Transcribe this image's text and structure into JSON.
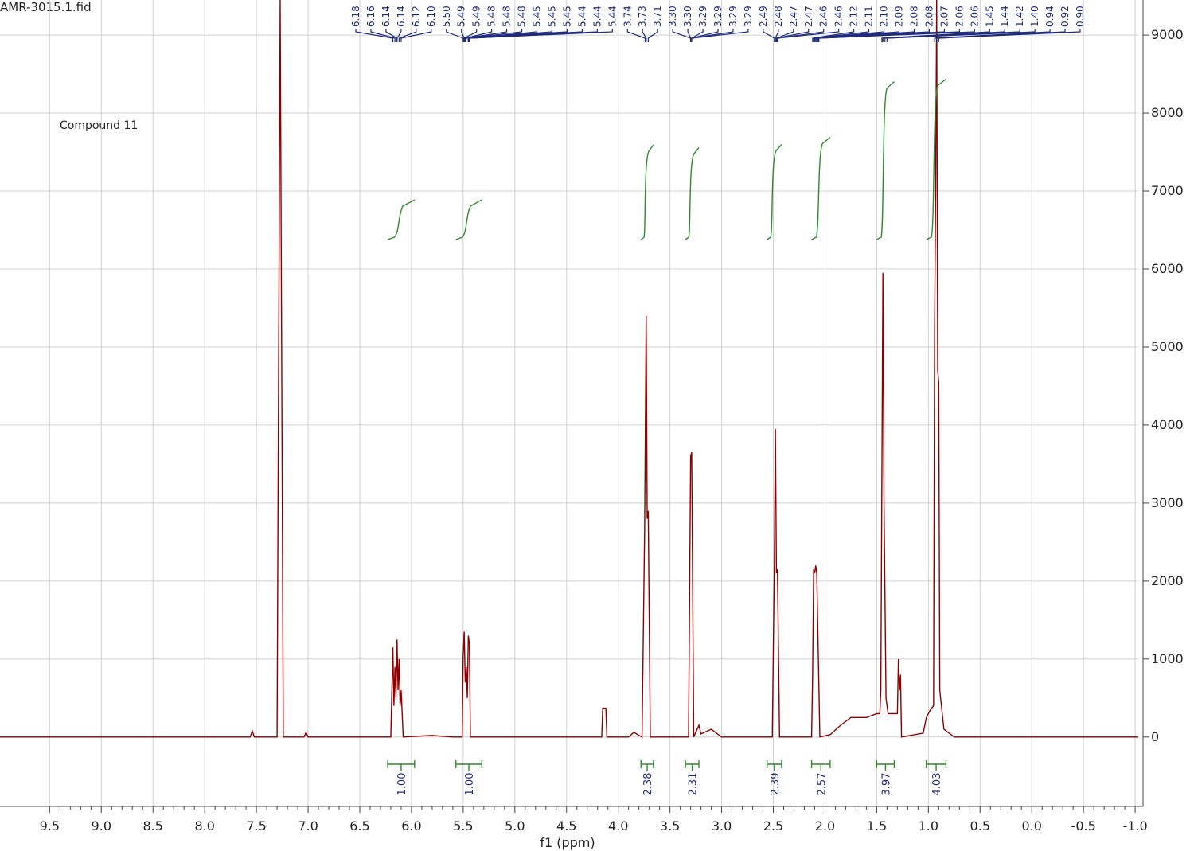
{
  "chart_data": {
    "type": "nmr",
    "title": "AMR-3015.1.fid",
    "annotation": "Compound 11",
    "xlabel": "f1 (ppm)",
    "color": "#8b0000",
    "label_color": "#1f2a7a",
    "integral_color": "#2e8b2e",
    "grid": true,
    "xlim": [
      9.98,
      -1.03
    ],
    "ylim": [
      -890,
      9450
    ],
    "xticks": [
      9.5,
      {
        "value": 9.0,
        "label": "9.0"
      },
      8.5,
      {
        "value": 8.0,
        "label": "8.0"
      },
      7.5,
      {
        "value": 7.0,
        "label": "7.0"
      },
      6.5,
      {
        "value": 6.0,
        "label": "6.0"
      },
      5.5,
      {
        "value": 5.0,
        "label": "5.0"
      },
      4.5,
      {
        "value": 4.0,
        "label": "4.0"
      },
      3.5,
      {
        "value": 3.0,
        "label": "3.0"
      },
      2.5,
      {
        "value": 2.0,
        "label": "2.0"
      },
      1.5,
      {
        "value": 1.0,
        "label": "1.0"
      },
      0.5,
      {
        "value": 0,
        "label": "0.0"
      },
      -0.5,
      {
        "value": -1.0,
        "label": "-1.0"
      }
    ],
    "yticks": [
      0,
      1000,
      2000,
      3000,
      4000,
      5000,
      6000,
      7000,
      8000,
      9000
    ],
    "x": [
      9.98,
      7.56,
      7.54,
      7.52,
      7.3,
      7.27,
      7.24,
      7.04,
      7.02,
      7.0,
      6.2,
      6.18,
      6.17,
      6.16,
      6.15,
      6.14,
      6.13,
      6.12,
      6.11,
      6.1,
      6.08,
      5.8,
      5.6,
      5.51,
      5.5,
      5.49,
      5.48,
      5.47,
      5.46,
      5.45,
      5.44,
      5.43,
      4.16,
      4.15,
      4.12,
      4.11,
      3.9,
      3.85,
      3.77,
      3.745,
      3.73,
      3.72,
      3.71,
      3.69,
      3.32,
      3.3,
      3.29,
      3.27,
      3.22,
      3.2,
      3.1,
      3.0,
      2.51,
      2.49,
      2.48,
      2.47,
      2.46,
      2.44,
      2.13,
      2.12,
      2.11,
      2.1,
      2.09,
      2.08,
      2.07,
      2.05,
      1.95,
      1.85,
      1.75,
      1.6,
      1.5,
      1.47,
      1.46,
      1.45,
      1.44,
      1.43,
      1.42,
      1.41,
      1.39,
      1.3,
      1.29,
      1.28,
      1.27,
      1.26,
      1.05,
      1.02,
      0.98,
      0.95,
      0.94,
      0.93,
      0.92,
      0.91,
      0.9,
      0.89,
      0.85,
      0.8,
      0.75,
      -1.03
    ],
    "values": [
      0,
      0,
      80,
      0,
      0,
      9450,
      0,
      0,
      60,
      0,
      0,
      1150,
      400,
      900,
      500,
      1250,
      600,
      1000,
      400,
      600,
      0,
      20,
      0,
      0,
      1050,
      1350,
      700,
      900,
      500,
      1300,
      1200,
      0,
      0,
      370,
      370,
      0,
      0,
      60,
      0,
      2650,
      5400,
      2800,
      2900,
      0,
      0,
      3600,
      3650,
      0,
      150,
      40,
      100,
      0,
      0,
      2250,
      3950,
      2100,
      2150,
      0,
      0,
      800,
      2150,
      2100,
      2200,
      2100,
      1400,
      0,
      30,
      150,
      250,
      250,
      300,
      300,
      600,
      3300,
      5950,
      3100,
      1800,
      500,
      300,
      300,
      1000,
      600,
      800,
      0,
      50,
      250,
      350,
      400,
      5250,
      7000,
      9450,
      4700,
      4550,
      600,
      100,
      50,
      0,
      0
    ],
    "peak_labels": [
      "6.18",
      "6.16",
      "6.14",
      "6.14",
      "6.12",
      "6.10",
      "5.50",
      "5.49",
      "5.49",
      "5.48",
      "5.48",
      "5.48",
      "5.45",
      "5.45",
      "5.45",
      "5.44",
      "5.44",
      "5.44",
      "3.74",
      "3.73",
      "3.71",
      "3.30",
      "3.30",
      "3.29",
      "3.29",
      "3.29",
      "3.29",
      "2.49",
      "2.48",
      "2.47",
      "2.47",
      "2.46",
      "2.46",
      "2.12",
      "2.11",
      "2.10",
      "2.09",
      "2.08",
      "2.08",
      "2.07",
      "2.06",
      "2.06",
      "1.45",
      "1.44",
      "1.42",
      "1.40",
      "0.94",
      "0.92",
      "0.90"
    ],
    "integrals": [
      {
        "value": 1.0,
        "label": "1.00",
        "from": 6.23,
        "to": 5.97
      },
      {
        "value": 1.0,
        "label": "1.00",
        "from": 5.57,
        "to": 5.32
      },
      {
        "value": 2.38,
        "label": "2.38",
        "from": 3.78,
        "to": 3.66
      },
      {
        "value": 2.31,
        "label": "2.31",
        "from": 3.35,
        "to": 3.22
      },
      {
        "value": 2.39,
        "label": "2.39",
        "from": 2.56,
        "to": 2.42
      },
      {
        "value": 2.57,
        "label": "2.57",
        "from": 2.13,
        "to": 1.95
      },
      {
        "value": 3.97,
        "label": "3.97",
        "from": 1.5,
        "to": 1.33
      },
      {
        "value": 4.03,
        "label": "4.03",
        "from": 1.02,
        "to": 0.83
      }
    ]
  }
}
